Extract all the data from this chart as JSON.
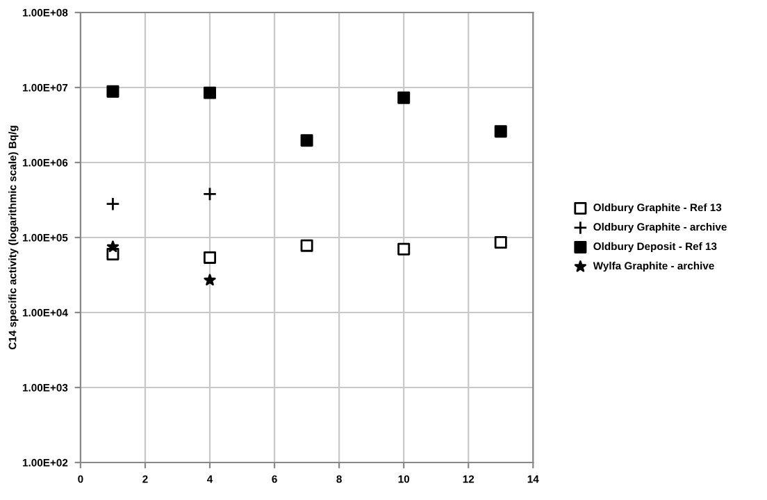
{
  "chart_data": {
    "type": "scatter",
    "ylabel": "C14 specific activity (logarithmic scale) Bq/g",
    "log": "y",
    "grid": true,
    "legend": "right",
    "xlim": [
      0,
      14
    ],
    "xticks": [
      0,
      2,
      4,
      6,
      8,
      10,
      12,
      14
    ],
    "ylim": [
      100,
      100000000
    ],
    "yticks": [
      {
        "value": 100,
        "label": "1.00E+02"
      },
      {
        "value": 1000,
        "label": "1.00E+03"
      },
      {
        "value": 10000,
        "label": "1.00E+04"
      },
      {
        "value": 100000,
        "label": "1.00E+05"
      },
      {
        "value": 1000000,
        "label": "1.00E+06"
      },
      {
        "value": 10000000,
        "label": "1.00E+07"
      },
      {
        "value": 100000000,
        "label": "1.00E+08"
      }
    ],
    "series": [
      {
        "name": "Oldbury Graphite - Ref 13",
        "color": "#ffffff",
        "marker": "square",
        "x": [
          1,
          4,
          7,
          10,
          13
        ],
        "values": [
          60000,
          54000,
          78000,
          70000,
          86000
        ]
      },
      {
        "name": "Oldbury Graphite - archive",
        "color": "#000000",
        "marker": "cross",
        "x": [
          1,
          4
        ],
        "values": [
          280000,
          380000
        ]
      },
      {
        "name": "Oldbury Deposit - Ref 13",
        "color": "#000000",
        "marker": "square",
        "x": [
          1,
          4,
          7,
          10,
          13
        ],
        "values": [
          8850000,
          8500000,
          1970000,
          7300000,
          2600000
        ]
      },
      {
        "name": "Wylfa Graphite - archive",
        "color": "#000000",
        "marker": "star",
        "x": [
          1,
          4
        ],
        "values": [
          75000,
          27000
        ]
      }
    ]
  }
}
